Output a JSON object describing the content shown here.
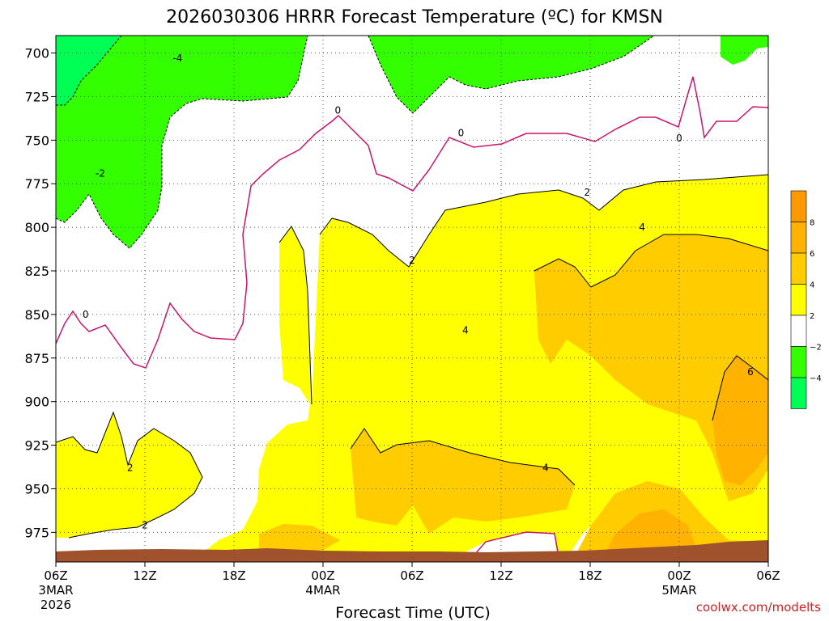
{
  "chart_data": {
    "type": "heatmap",
    "title": "2026030306 HRRR Forecast Temperature (ºC) for KMSN",
    "xlabel": "Forecast Time (UTC)",
    "ylabel": "",
    "credit": "coolwx.com/modelts",
    "x_range_hours": [
      0,
      48
    ],
    "y_range_hpa": [
      690,
      992
    ],
    "y_ticks": [
      700,
      725,
      750,
      775,
      800,
      825,
      850,
      875,
      900,
      925,
      950,
      975
    ],
    "x_ticks": [
      {
        "hour": 0,
        "label": "06Z",
        "sub": [
          "3MAR",
          "2026"
        ]
      },
      {
        "hour": 6,
        "label": "12Z",
        "sub": []
      },
      {
        "hour": 12,
        "label": "18Z",
        "sub": []
      },
      {
        "hour": 18,
        "label": "00Z",
        "sub": [
          "4MAR"
        ]
      },
      {
        "hour": 24,
        "label": "06Z",
        "sub": []
      },
      {
        "hour": 30,
        "label": "12Z",
        "sub": []
      },
      {
        "hour": 36,
        "label": "18Z",
        "sub": []
      },
      {
        "hour": 42,
        "label": "00Z",
        "sub": [
          "5MAR"
        ]
      },
      {
        "hour": 48,
        "label": "06Z",
        "sub": []
      }
    ],
    "grid": true,
    "legend": "right",
    "colorbar": [
      {
        "from": 8,
        "to": 10,
        "color": "#ff9900"
      },
      {
        "from": 6,
        "to": 8,
        "color": "#ffb300"
      },
      {
        "from": 4,
        "to": 6,
        "color": "#ffcc00"
      },
      {
        "from": 2,
        "to": 4,
        "color": "#ffff00"
      },
      {
        "from": -2,
        "to": 2,
        "color": "#ffffff"
      },
      {
        "from": -4,
        "to": -2,
        "color": "#33ff00"
      },
      {
        "from": -6,
        "to": -4,
        "color": "#00ff55"
      }
    ],
    "colorbar_labels": [
      "8",
      "6",
      "4",
      "2",
      "−2",
      "−4"
    ],
    "ground_color": "#a0522d",
    "contour_labels": [
      {
        "text": "-4",
        "hour": 8.2,
        "p": 703
      },
      {
        "text": "-2",
        "hour": 3.0,
        "p": 769
      },
      {
        "text": "0",
        "hour": 19.0,
        "p": 733
      },
      {
        "text": "0",
        "hour": 27.3,
        "p": 746
      },
      {
        "text": "0",
        "hour": 42.0,
        "p": 749
      },
      {
        "text": "0",
        "hour": 2.0,
        "p": 850
      },
      {
        "text": "2",
        "hour": 35.8,
        "p": 780
      },
      {
        "text": "2",
        "hour": 24.0,
        "p": 819
      },
      {
        "text": "2",
        "hour": 5.0,
        "p": 938
      },
      {
        "text": "2",
        "hour": 6.0,
        "p": 971
      },
      {
        "text": "4",
        "hour": 39.5,
        "p": 800
      },
      {
        "text": "4",
        "hour": 27.6,
        "p": 859
      },
      {
        "text": "4",
        "hour": 33.0,
        "p": 938
      },
      {
        "text": "6",
        "hour": 46.8,
        "p": 883
      }
    ]
  }
}
